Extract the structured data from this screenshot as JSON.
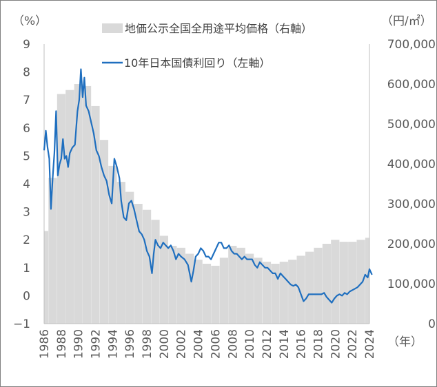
{
  "chart_data": {
    "type": "bar+line",
    "left_unit": "（%）",
    "right_unit": "（円/㎡）",
    "x_unit": "（年）",
    "left_axis": {
      "ylim": [
        -1,
        9
      ],
      "ticks": [
        "9",
        "8",
        "7",
        "6",
        "5",
        "4",
        "3",
        "2",
        "1",
        "0",
        "−1"
      ]
    },
    "right_axis": {
      "ylim": [
        0,
        700000
      ],
      "ticks": [
        "700,000",
        "600,000",
        "500,000",
        "400,000",
        "300,000",
        "200,000",
        "100,000",
        "0"
      ]
    },
    "x_ticks": [
      "1986",
      "1988",
      "1990",
      "1992",
      "1994",
      "1996",
      "1998",
      "2000",
      "2002",
      "2004",
      "2006",
      "2008",
      "2010",
      "2012",
      "2014",
      "2016",
      "2018",
      "2020",
      "2022",
      "2024"
    ],
    "grid": false,
    "legend_position": "top",
    "series": [
      {
        "name": "地価公示全国全用途平均価格（右軸）",
        "kind": "bar",
        "axis": "right",
        "color": "#d9d9d9",
        "x": [
          1986,
          1987,
          1988,
          1989,
          1990,
          1991,
          1992,
          1993,
          1994,
          1995,
          1996,
          1997,
          1998,
          1999,
          2000,
          2001,
          2002,
          2003,
          2004,
          2005,
          2006,
          2007,
          2008,
          2009,
          2010,
          2011,
          2012,
          2013,
          2014,
          2015,
          2016,
          2017,
          2018,
          2019,
          2020,
          2021,
          2022,
          2023,
          2024
        ],
        "values": [
          232000,
          365000,
          575000,
          585000,
          600000,
          595000,
          545000,
          460000,
          395000,
          355000,
          330000,
          300000,
          285000,
          260000,
          220000,
          195000,
          190000,
          175000,
          160000,
          150000,
          145000,
          165000,
          195000,
          190000,
          175000,
          165000,
          155000,
          150000,
          155000,
          160000,
          170000,
          180000,
          190000,
          200000,
          210000,
          205000,
          205000,
          210000,
          215000
        ]
      },
      {
        "name": "10年日本国債利回り（左軸）",
        "kind": "line",
        "axis": "left",
        "color": "#1f6fbf",
        "x": [
          1986.0,
          1986.2,
          1986.4,
          1986.6,
          1986.8,
          1987.0,
          1987.2,
          1987.4,
          1987.6,
          1987.8,
          1988.0,
          1988.2,
          1988.4,
          1988.6,
          1988.8,
          1989.0,
          1989.3,
          1989.6,
          1989.9,
          1990.1,
          1990.3,
          1990.5,
          1990.7,
          1990.9,
          1991.2,
          1991.5,
          1991.8,
          1992.1,
          1992.4,
          1992.7,
          1993.0,
          1993.3,
          1993.6,
          1993.9,
          1994.2,
          1994.5,
          1994.8,
          1995.0,
          1995.3,
          1995.6,
          1995.9,
          1996.2,
          1996.5,
          1996.8,
          1997.1,
          1997.4,
          1997.7,
          1998.0,
          1998.3,
          1998.6,
          1998.8,
          1999.0,
          1999.3,
          1999.6,
          1999.9,
          2000.2,
          2000.5,
          2000.8,
          2001.1,
          2001.4,
          2001.7,
          2002.0,
          2002.4,
          2002.8,
          2003.2,
          2003.45,
          2003.7,
          2004.0,
          2004.3,
          2004.6,
          2004.9,
          2005.2,
          2005.5,
          2005.8,
          2006.1,
          2006.4,
          2006.7,
          2007.0,
          2007.3,
          2007.6,
          2007.9,
          2008.2,
          2008.5,
          2008.8,
          2009.1,
          2009.4,
          2009.7,
          2010.0,
          2010.3,
          2010.6,
          2010.9,
          2011.2,
          2011.5,
          2011.8,
          2012.1,
          2012.4,
          2012.7,
          2013.0,
          2013.3,
          2013.6,
          2013.9,
          2014.2,
          2014.5,
          2014.8,
          2015.1,
          2015.4,
          2015.7,
          2016.0,
          2016.3,
          2016.6,
          2016.9,
          2017.2,
          2017.5,
          2017.8,
          2018.1,
          2018.4,
          2018.7,
          2019.0,
          2019.3,
          2019.6,
          2019.9,
          2020.2,
          2020.5,
          2020.8,
          2021.1,
          2021.4,
          2021.7,
          2022.0,
          2022.3,
          2022.6,
          2022.9,
          2023.2,
          2023.5,
          2023.8,
          2024.0,
          2024.3
        ],
        "values": [
          5.2,
          5.9,
          5.3,
          4.9,
          3.1,
          4.2,
          5.1,
          6.6,
          4.3,
          4.7,
          4.9,
          5.6,
          4.9,
          5.0,
          4.6,
          5.1,
          5.3,
          5.4,
          6.6,
          7.0,
          8.1,
          7.1,
          7.8,
          6.8,
          6.6,
          6.2,
          5.8,
          5.2,
          5.0,
          4.6,
          4.3,
          4.1,
          3.6,
          3.3,
          4.9,
          4.6,
          4.2,
          3.4,
          2.8,
          2.7,
          3.3,
          3.4,
          3.1,
          2.7,
          2.3,
          2.2,
          2.0,
          1.6,
          1.4,
          0.8,
          1.5,
          2.0,
          1.8,
          1.7,
          1.9,
          1.8,
          1.7,
          1.8,
          1.6,
          1.3,
          1.5,
          1.4,
          1.3,
          1.1,
          0.5,
          0.9,
          1.4,
          1.5,
          1.7,
          1.6,
          1.4,
          1.4,
          1.3,
          1.5,
          1.7,
          1.9,
          1.9,
          1.7,
          1.7,
          1.8,
          1.6,
          1.5,
          1.5,
          1.4,
          1.3,
          1.4,
          1.3,
          1.3,
          1.3,
          1.1,
          1.0,
          1.2,
          1.1,
          1.0,
          1.0,
          0.9,
          0.8,
          0.8,
          0.6,
          0.8,
          0.7,
          0.6,
          0.5,
          0.4,
          0.35,
          0.4,
          0.3,
          0.05,
          -0.2,
          -0.1,
          0.05,
          0.05,
          0.05,
          0.05,
          0.05,
          0.05,
          0.1,
          -0.05,
          -0.15,
          -0.25,
          -0.1,
          0.0,
          0.05,
          0.0,
          0.1,
          0.05,
          0.15,
          0.2,
          0.25,
          0.3,
          0.4,
          0.5,
          0.75,
          0.65,
          0.95,
          0.75
        ]
      }
    ]
  }
}
